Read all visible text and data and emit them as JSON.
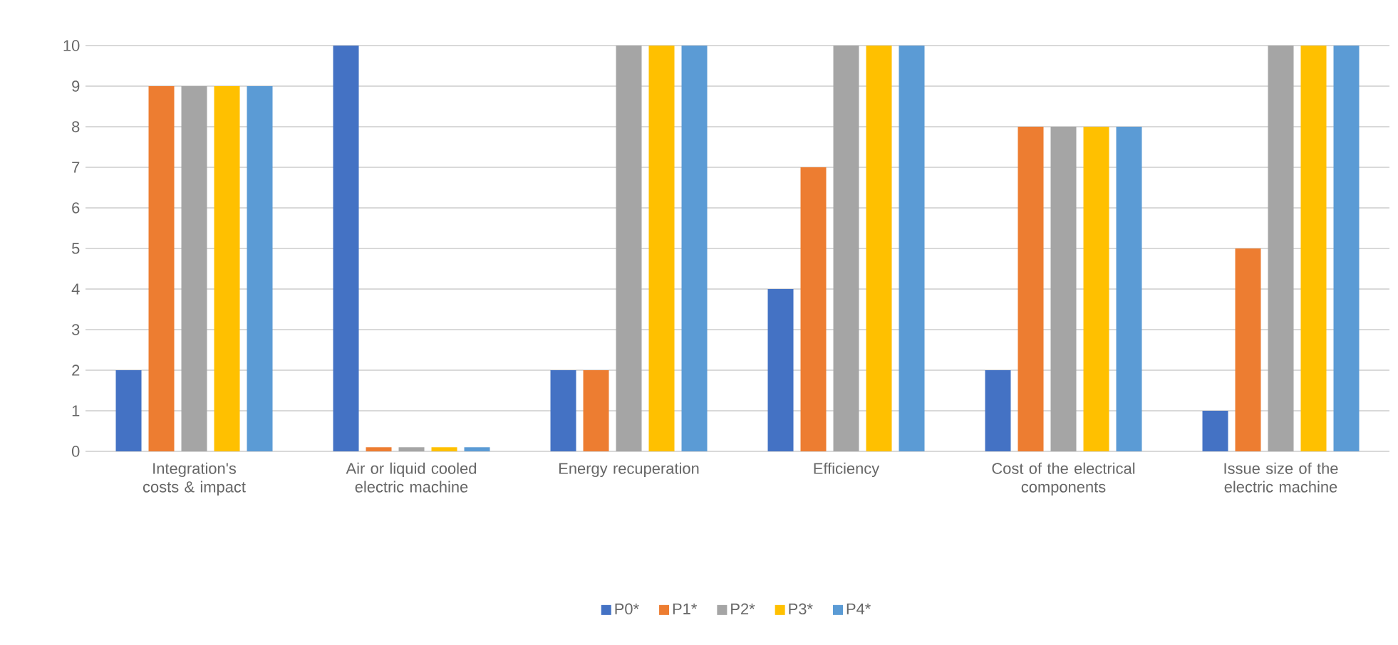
{
  "chart_data": {
    "type": "bar",
    "categories": [
      "Integration's costs & impact",
      "Air or liquid cooled electric machine",
      "Energy recuperation",
      "Efficiency",
      "Cost of the electrical components",
      "Issue size of the electric machine"
    ],
    "series": [
      {
        "name": "P0*",
        "color": "#4472c4",
        "values": [
          2,
          10,
          2,
          4,
          2,
          1
        ]
      },
      {
        "name": "P1*",
        "color": "#ed7d31",
        "values": [
          9,
          0.1,
          2,
          7,
          8,
          5
        ]
      },
      {
        "name": "P2*",
        "color": "#a5a5a5",
        "values": [
          9,
          0.1,
          10,
          10,
          8,
          10
        ]
      },
      {
        "name": "P3*",
        "color": "#ffc000",
        "values": [
          9,
          0.1,
          10,
          10,
          8,
          10
        ]
      },
      {
        "name": "P4*",
        "color": "#5b9bd5",
        "values": [
          9,
          0.1,
          10,
          10,
          8,
          10
        ]
      }
    ],
    "ylim": [
      0,
      10
    ],
    "yticks": [
      0,
      1,
      2,
      3,
      4,
      5,
      6,
      7,
      8,
      9,
      10
    ],
    "grid": "y",
    "legend": "bottom"
  }
}
